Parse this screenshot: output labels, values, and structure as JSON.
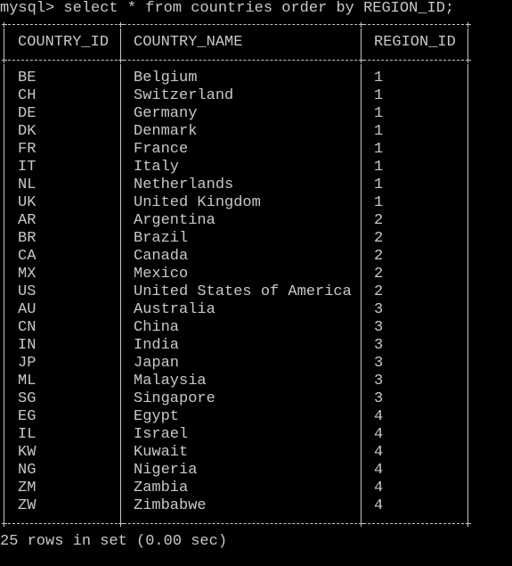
{
  "terminal": {
    "prompt": "mysql>",
    "command": "select * from countries order by REGION_ID;",
    "summary": "25 rows in set (0.00 sec)"
  },
  "table": {
    "columns": [
      "COUNTRY_ID",
      "COUNTRY_NAME",
      "REGION_ID"
    ],
    "rows": [
      [
        "BE",
        "Belgium",
        "1"
      ],
      [
        "CH",
        "Switzerland",
        "1"
      ],
      [
        "DE",
        "Germany",
        "1"
      ],
      [
        "DK",
        "Denmark",
        "1"
      ],
      [
        "FR",
        "France",
        "1"
      ],
      [
        "IT",
        "Italy",
        "1"
      ],
      [
        "NL",
        "Netherlands",
        "1"
      ],
      [
        "UK",
        "United Kingdom",
        "1"
      ],
      [
        "AR",
        "Argentina",
        "2"
      ],
      [
        "BR",
        "Brazil",
        "2"
      ],
      [
        "CA",
        "Canada",
        "2"
      ],
      [
        "MX",
        "Mexico",
        "2"
      ],
      [
        "US",
        "United States of America",
        "2"
      ],
      [
        "AU",
        "Australia",
        "3"
      ],
      [
        "CN",
        "China",
        "3"
      ],
      [
        "IN",
        "India",
        "3"
      ],
      [
        "JP",
        "Japan",
        "3"
      ],
      [
        "ML",
        "Malaysia",
        "3"
      ],
      [
        "SG",
        "Singapore",
        "3"
      ],
      [
        "EG",
        "Egypt",
        "4"
      ],
      [
        "IL",
        "Israel",
        "4"
      ],
      [
        "KW",
        "Kuwait",
        "4"
      ],
      [
        "NG",
        "Nigeria",
        "4"
      ],
      [
        "ZM",
        "Zambia",
        "4"
      ],
      [
        "ZW",
        "Zimbabwe",
        "4"
      ]
    ]
  },
  "colors": {
    "background": "#000000",
    "text": "#c8c8c8"
  }
}
